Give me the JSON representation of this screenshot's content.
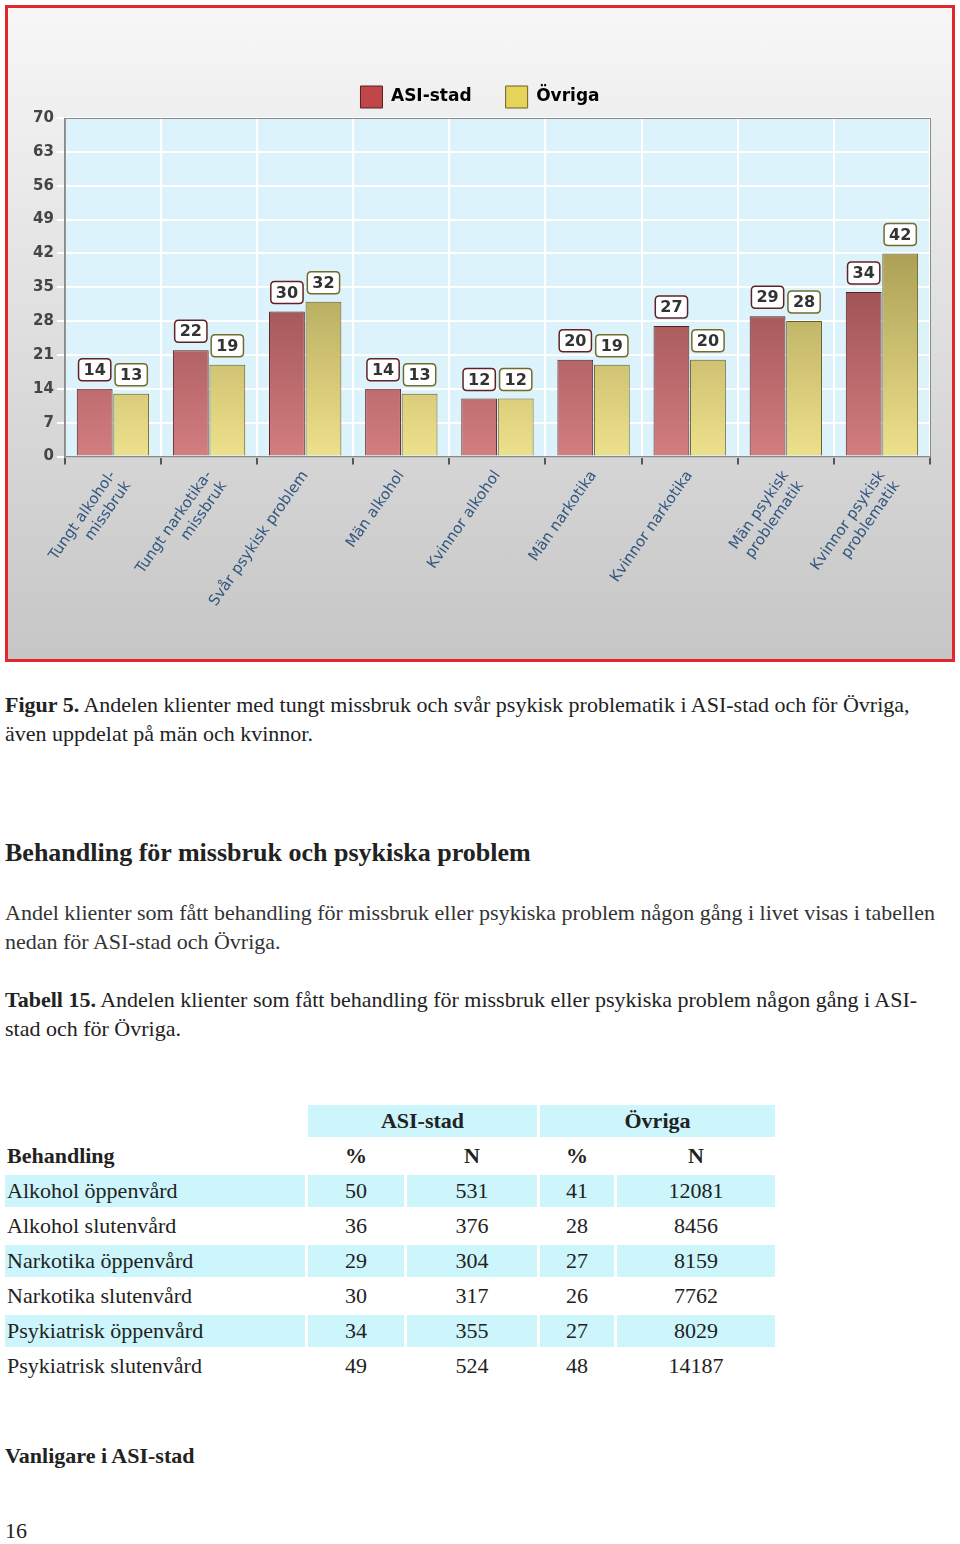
{
  "chart_data": {
    "type": "bar",
    "categories": [
      "Tungt alkohol-\nmissbruk",
      "Tungt narkotika-\nmissbruk",
      "Svår psykisk problem",
      "Män alkohol",
      "Kvinnor alkohol",
      "Män narkotika",
      "Kvinnor narkotika",
      "Män psykisk\nproblematik",
      "Kvinnor psykisk\nproblematik"
    ],
    "series": [
      {
        "name": "ASI-stad",
        "color": "#c0464a",
        "values": [
          14,
          22,
          30,
          14,
          12,
          20,
          27,
          29,
          34
        ]
      },
      {
        "name": "Övriga",
        "color": "#e6d45a",
        "values": [
          13,
          19,
          32,
          13,
          12,
          19,
          20,
          28,
          42
        ]
      }
    ],
    "ylim": [
      0,
      70
    ],
    "yticks": [
      0,
      7,
      14,
      21,
      28,
      35,
      42,
      49,
      56,
      63,
      70
    ],
    "grid": true,
    "legend": "top",
    "data_labels": true
  },
  "figure_caption": {
    "label": "Figur 5.",
    "text": "Andelen klienter med tungt missbruk och svår psykisk problematik i ASI-stad och för Övriga, även uppdelat på män och kvinnor."
  },
  "heading": "Behandling för missbruk och psykiska problem",
  "paragraph": "Andel klienter som fått behandling för missbruk eller psykiska problem någon gång i livet visas i tabellen nedan för ASI-stad och Övriga.",
  "table_caption": {
    "label": "Tabell 15.",
    "text": "Andelen klienter som fått behandling för missbruk eller psykiska problem någon gång i ASI-stad och för Övriga."
  },
  "table": {
    "groups": [
      "ASI-stad",
      "Övriga"
    ],
    "header": [
      "Behandling",
      "%",
      "N",
      "%",
      "N"
    ],
    "rows": [
      [
        "Alkohol öppenvård",
        50,
        531,
        41,
        12081
      ],
      [
        "Alkohol slutenvård",
        36,
        376,
        28,
        8456
      ],
      [
        "Narkotika öppenvård",
        29,
        304,
        27,
        8159
      ],
      [
        "Narkotika slutenvård",
        30,
        317,
        26,
        7762
      ],
      [
        "Psykiatrisk öppenvård",
        34,
        355,
        27,
        8029
      ],
      [
        "Psykiatrisk slutenvård",
        49,
        524,
        48,
        14187
      ]
    ]
  },
  "subheading": "Vanligare i ASI-stad",
  "page_number": 16
}
